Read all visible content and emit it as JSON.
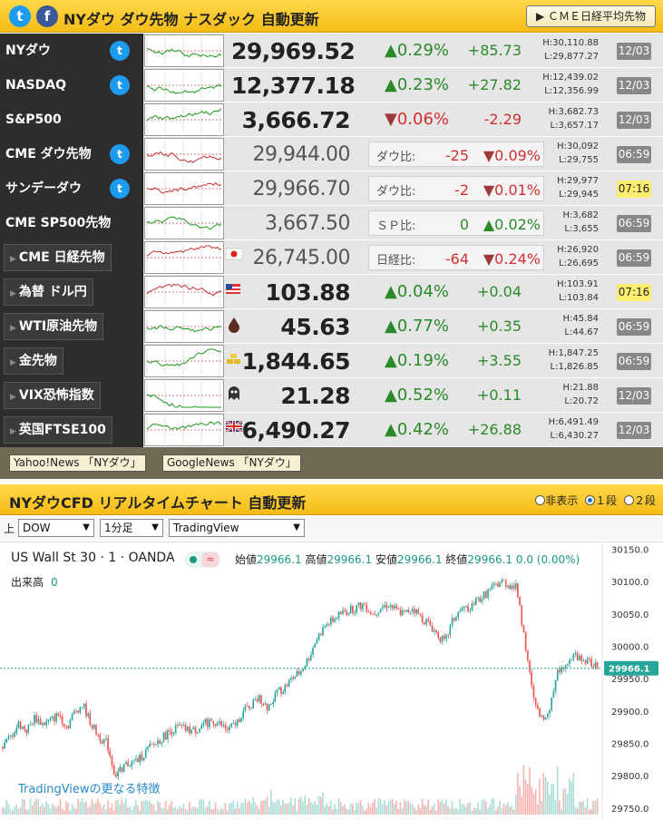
{
  "header": {
    "title": "NYダウ ダウ先物 ナスダック 自動更新",
    "button": "▶ ＣＭＥ日経平均先物",
    "twitter_icon": "twitter-icon",
    "facebook_icon": "facebook-icon"
  },
  "markets": [
    {
      "name": "NYダウ",
      "twitter": true,
      "price": "29,969.52",
      "pct": "0.29%",
      "dir": "up",
      "change": "+85.73",
      "high": "H:30,110.88",
      "low": "L:29,877.27",
      "time": "12/03"
    },
    {
      "name": "NASDAQ",
      "twitter": true,
      "price": "12,377.18",
      "pct": "0.23%",
      "dir": "up",
      "change": "+27.82",
      "high": "H:12,439.02",
      "low": "L:12,356.99",
      "time": "12/03"
    },
    {
      "name": "S&P500",
      "twitter": false,
      "price": "3,666.72",
      "pct": "0.06%",
      "dir": "down",
      "change": "-2.29",
      "high": "H:3,682.73",
      "low": "L:3,657.17",
      "time": "12/03"
    },
    {
      "name": "CME ダウ先物",
      "twitter": true,
      "price": "29,944.00",
      "cmp_label": "ダウ比:",
      "cmp_value": "-25",
      "cmp_pct": "0.09%",
      "dir": "down",
      "high": "H:30,092",
      "low": "L:29,755",
      "time": "06:59"
    },
    {
      "name": "サンデーダウ",
      "twitter": true,
      "price": "29,966.70",
      "cmp_label": "ダウ比:",
      "cmp_value": "-2",
      "cmp_pct": "0.01%",
      "dir": "down",
      "high": "H:29,977",
      "low": "L:29,945",
      "time": "07:16"
    },
    {
      "name": "CME SP500先物",
      "twitter": false,
      "price": "3,667.50",
      "cmp_label": "ＳＰ比:",
      "cmp_value": "0",
      "cmp_pct": "0.02%",
      "dir": "up",
      "high": "H:3,682",
      "low": "L:3,655",
      "time": "06:59"
    },
    {
      "name": "CME 日経先物",
      "sub": true,
      "icon": "japan-flag-icon",
      "price": "26,745.00",
      "cmp_label": "日経比:",
      "cmp_value": "-64",
      "cmp_pct": "0.24%",
      "dir": "down",
      "high": "H:26,920",
      "low": "L:26,695",
      "time": "06:59"
    },
    {
      "name": "為替 ドル円",
      "sub": true,
      "icon": "us-flag-icon",
      "price": "103.88",
      "pct": "0.04%",
      "dir": "up",
      "change": "+0.04",
      "high": "H:103.91",
      "low": "L:103.84",
      "time": "07:16"
    },
    {
      "name": "WTI原油先物",
      "sub": true,
      "icon": "oil-drop-icon",
      "price": "45.63",
      "pct": "0.77%",
      "dir": "up",
      "change": "+0.35",
      "high": "H:45.84",
      "low": "L:44.67",
      "time": "06:59"
    },
    {
      "name": "金先物",
      "sub": true,
      "icon": "gold-bars-icon",
      "price": "1,844.65",
      "pct": "0.19%",
      "dir": "up",
      "change": "+3.55",
      "high": "H:1,847.25",
      "low": "L:1,826.85",
      "time": "06:59"
    },
    {
      "name": "VIX恐怖指数",
      "sub": true,
      "icon": "ghost-icon",
      "price": "21.28",
      "pct": "0.52%",
      "dir": "up",
      "change": "+0.11",
      "high": "H:21.88",
      "low": "L:20.72",
      "time": "12/03"
    },
    {
      "name": "英国FTSE100",
      "sub": true,
      "icon": "uk-flag-icon",
      "price": "6,490.27",
      "pct": "0.42%",
      "dir": "up",
      "change": "+26.88",
      "high": "H:6,491.49",
      "low": "L:6,430.27",
      "time": "12/03"
    }
  ],
  "links": [
    "Yahoo!News 「NYダウ」",
    "GoogleNews 「NYダウ」"
  ],
  "chart_section": {
    "title": "NYダウCFD リアルタイムチャート 自動更新",
    "radio_hide": "非表示",
    "radio_one": "１段",
    "radio_two": "２段",
    "row_label": "上",
    "select_symbol": "DOW",
    "select_interval": "1分足",
    "select_source": "TradingView"
  },
  "chart": {
    "symbol": "US Wall St 30 · 1 · OANDA",
    "open_label": "始値",
    "open": "29966.1",
    "high_label": "高値",
    "high": "29966.1",
    "low_label": "安値",
    "low": "29966.1",
    "close_label": "終値",
    "close": "29966.1",
    "change": "0.0 (0.00%)",
    "volume_label": "出来高",
    "volume": "0",
    "promo": "TradingViewの更なる特徴",
    "last_price_label": "29966.1"
  },
  "chart_data": {
    "type": "line",
    "y_ticks": [
      29750.0,
      29800.0,
      29850.0,
      29900.0,
      29950.0,
      30000.0,
      30050.0,
      30100.0,
      30150.0
    ],
    "y_tick_labels": [
      "29750.0",
      "29800.0",
      "29850.0",
      "29900.0",
      "29950.0",
      "30000.0",
      "30050.0",
      "30100.0",
      "30150.0"
    ],
    "ylim": [
      29740,
      30155
    ],
    "last": 29966.1,
    "price_path": [
      29845,
      29860,
      29880,
      29870,
      29890,
      29880,
      29885,
      29895,
      29875,
      29900,
      29910,
      29880,
      29860,
      29850,
      29800,
      29815,
      29820,
      29825,
      29840,
      29850,
      29860,
      29870,
      29875,
      29870,
      29870,
      29880,
      29885,
      29880,
      29870,
      29880,
      29900,
      29910,
      29920,
      29905,
      29930,
      29935,
      29950,
      29960,
      29980,
      30010,
      30030,
      30040,
      30050,
      30055,
      30060,
      30065,
      30050,
      30060,
      30065,
      30055,
      30050,
      30060,
      30045,
      30035,
      30020,
      30005,
      30040,
      30055,
      30060,
      30070,
      30080,
      30090,
      30100,
      30095,
      30090,
      30005,
      29920,
      29885,
      29905,
      29960,
      29975,
      29985,
      29980,
      29975,
      29966.1
    ],
    "colors": {
      "up": "#26a69a",
      "down": "#ef5350",
      "last_price": "#26a69a"
    }
  }
}
